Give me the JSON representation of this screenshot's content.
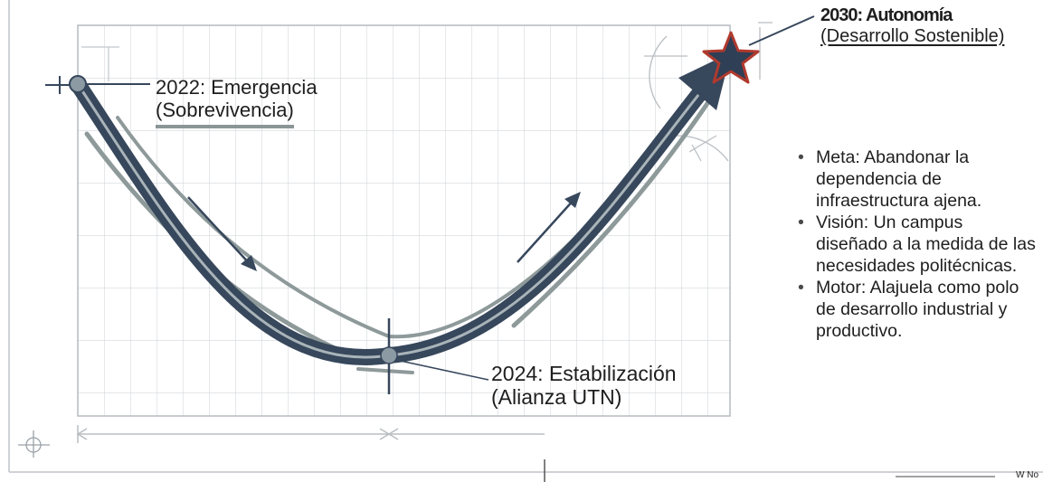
{
  "milestones": {
    "m2022": {
      "line1": "2022: Emergencia",
      "line2": "(Sobrevivencia)"
    },
    "m2024": {
      "line1": "2024: Estabilización",
      "line2": "(Alianza UTN)"
    },
    "m2030": {
      "line1": "2030: Autonomía",
      "line2": "(Desarrollo Sostenible)"
    }
  },
  "bullets": [
    "Meta: Abandonar la dependencia de infraestructura  ajena.",
    "Visión: Un campus diseñado a la medida de las necesidades politécnicas.",
    "Motor: Alajuela como polo de desarrollo industrial y productivo."
  ],
  "corner_note": "W No",
  "colors": {
    "curve": "#37475c",
    "grid": "#d4d8dc",
    "guide": "#8e999a",
    "star_fill": "#2f3f55",
    "star_outline": "#b03a2e"
  }
}
